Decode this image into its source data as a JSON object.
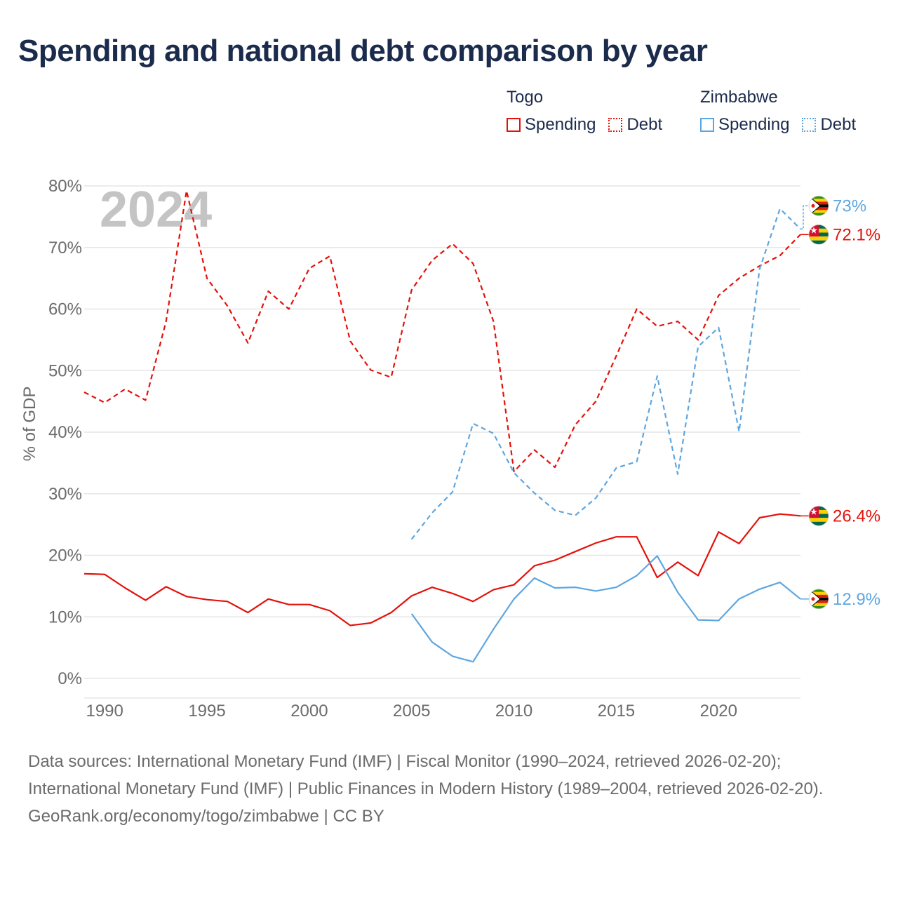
{
  "title": "Spending and national debt comparison by year",
  "legend": [
    {
      "country": "Togo",
      "items": [
        {
          "label": "Spending",
          "style": "solid",
          "color": "#e3120b"
        },
        {
          "label": "Debt",
          "style": "dotted",
          "color": "#e3120b"
        }
      ]
    },
    {
      "country": "Zimbabwe",
      "items": [
        {
          "label": "Spending",
          "style": "solid",
          "color": "#5ea6e0"
        },
        {
          "label": "Debt",
          "style": "dotted",
          "color": "#5ea6e0"
        }
      ]
    }
  ],
  "footer": {
    "sources": "Data sources: International Monetary Fund (IMF) | Fiscal Monitor (1990–2024, retrieved 2026-02-20); International Monetary Fund (IMF) | Public Finances in Modern History (1989–2004, retrieved 2026-02-20).",
    "credit": "GeoRank.org/economy/togo/zimbabwe | CC BY"
  },
  "chart_data": {
    "type": "line",
    "year_label": "2024",
    "ylabel": "% of GDP",
    "xlabel": "",
    "xlim": [
      1989,
      2024
    ],
    "ylim": [
      0,
      80
    ],
    "yticks": [
      0,
      10,
      20,
      30,
      40,
      50,
      60,
      70,
      80
    ],
    "ytick_labels": [
      "0%",
      "10%",
      "20%",
      "30%",
      "40%",
      "50%",
      "60%",
      "70%",
      "80%"
    ],
    "xticks": [
      1990,
      1995,
      2000,
      2005,
      2010,
      2015,
      2020
    ],
    "xtick_labels": [
      "1990",
      "1995",
      "2000",
      "2005",
      "2010",
      "2015",
      "2020"
    ],
    "grid": true,
    "series": [
      {
        "name": "Togo Debt",
        "country": "Togo",
        "color": "#e3120b",
        "dash": true,
        "x": [
          1989,
          1990,
          1991,
          1992,
          1993,
          1994,
          1995,
          1996,
          1997,
          1998,
          1999,
          2000,
          2001,
          2002,
          2003,
          2004,
          2005,
          2006,
          2007,
          2008,
          2009,
          2010,
          2011,
          2012,
          2013,
          2014,
          2015,
          2016,
          2017,
          2018,
          2019,
          2020,
          2021,
          2022,
          2023,
          2024
        ],
        "values": [
          46.5,
          44.8,
          47.0,
          45.2,
          58.0,
          79.2,
          65.0,
          60.5,
          54.5,
          62.9,
          60.0,
          66.6,
          68.6,
          54.8,
          50.1,
          48.9,
          63.1,
          67.9,
          70.6,
          67.4,
          58.0,
          33.6,
          37.1,
          34.3,
          41.2,
          45.0,
          52.4,
          60.0,
          57.2,
          58.0,
          55.0,
          62.2,
          65.0,
          67.0,
          68.7,
          72.1
        ],
        "end_label": "72.1%"
      },
      {
        "name": "Zimbabwe Debt",
        "country": "Zimbabwe",
        "color": "#5ea6e0",
        "dash": true,
        "x": [
          2005,
          2006,
          2007,
          2008,
          2009,
          2010,
          2011,
          2012,
          2013,
          2014,
          2015,
          2016,
          2017,
          2018,
          2019,
          2020,
          2021,
          2022,
          2023,
          2024
        ],
        "values": [
          22.6,
          26.9,
          30.3,
          41.4,
          39.8,
          33.4,
          30.1,
          27.3,
          26.5,
          29.3,
          34.2,
          35.2,
          49.1,
          33.2,
          53.9,
          57.0,
          40.1,
          66.5,
          76.3,
          73.0
        ],
        "end_label": "73%"
      },
      {
        "name": "Togo Spending",
        "country": "Togo",
        "color": "#e3120b",
        "dash": false,
        "x": [
          1989,
          1990,
          1991,
          1992,
          1993,
          1994,
          1995,
          1996,
          1997,
          1998,
          1999,
          2000,
          2001,
          2002,
          2003,
          2004,
          2005,
          2006,
          2007,
          2008,
          2009,
          2010,
          2011,
          2012,
          2013,
          2014,
          2015,
          2016,
          2017,
          2018,
          2019,
          2020,
          2021,
          2022,
          2023,
          2024
        ],
        "values": [
          17.0,
          16.9,
          14.7,
          12.7,
          14.9,
          13.3,
          12.8,
          12.5,
          10.7,
          12.9,
          12.0,
          12.0,
          11.0,
          8.6,
          9.0,
          10.7,
          13.4,
          14.8,
          13.8,
          12.5,
          14.4,
          15.2,
          18.3,
          19.2,
          20.6,
          22.0,
          23.0,
          23.0,
          16.4,
          18.9,
          16.7,
          23.8,
          21.9,
          26.1,
          26.7,
          26.4
        ],
        "end_label": "26.4%"
      },
      {
        "name": "Zimbabwe Spending",
        "country": "Zimbabwe",
        "color": "#5ea6e0",
        "dash": false,
        "x": [
          2005,
          2006,
          2007,
          2008,
          2009,
          2010,
          2011,
          2012,
          2013,
          2014,
          2015,
          2016,
          2017,
          2018,
          2019,
          2020,
          2021,
          2022,
          2023,
          2024
        ],
        "values": [
          10.5,
          5.9,
          3.6,
          2.7,
          8.0,
          12.9,
          16.3,
          14.7,
          14.8,
          14.2,
          14.8,
          16.7,
          19.9,
          14.0,
          9.5,
          9.4,
          12.9,
          14.5,
          15.6,
          12.9
        ],
        "end_label": "12.9%"
      }
    ]
  }
}
